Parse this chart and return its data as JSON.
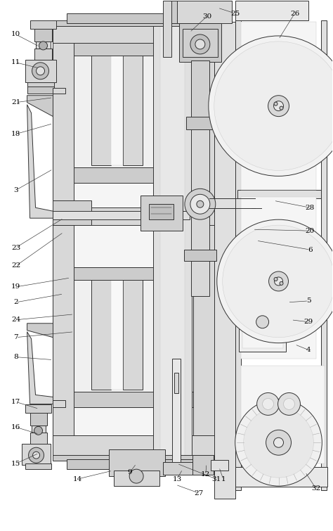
{
  "bg_color": "#ffffff",
  "line_color": "#333333",
  "fig_width": 4.74,
  "fig_height": 7.55,
  "dpi": 100,
  "labels": [
    [
      "10",
      28,
      48
    ],
    [
      "11",
      28,
      88
    ],
    [
      "21",
      28,
      145
    ],
    [
      "18",
      28,
      190
    ],
    [
      "3",
      28,
      270
    ],
    [
      "23",
      28,
      352
    ],
    [
      "22",
      28,
      378
    ],
    [
      "19",
      28,
      408
    ],
    [
      "2",
      28,
      430
    ],
    [
      "24",
      28,
      455
    ],
    [
      "7",
      28,
      480
    ],
    [
      "8",
      28,
      508
    ],
    [
      "17",
      28,
      572
    ],
    [
      "16",
      28,
      608
    ],
    [
      "15",
      28,
      660
    ],
    [
      "14",
      110,
      680
    ],
    [
      "9",
      185,
      670
    ],
    [
      "13",
      255,
      680
    ],
    [
      "12",
      295,
      672
    ],
    [
      "1",
      320,
      680
    ],
    [
      "30",
      295,
      28
    ],
    [
      "25",
      335,
      22
    ],
    [
      "26",
      420,
      22
    ],
    [
      "28",
      440,
      295
    ],
    [
      "20",
      440,
      330
    ],
    [
      "6",
      440,
      355
    ],
    [
      "5",
      440,
      430
    ],
    [
      "29",
      440,
      460
    ],
    [
      "4",
      440,
      500
    ],
    [
      "31",
      310,
      680
    ],
    [
      "27",
      285,
      700
    ],
    [
      "32",
      450,
      695
    ]
  ]
}
